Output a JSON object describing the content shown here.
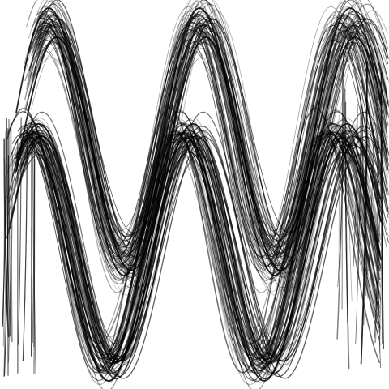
{
  "artwork": {
    "style": "black ink wave strands on white",
    "background_color": "#ffffff",
    "ink_color": "#000000"
  }
}
